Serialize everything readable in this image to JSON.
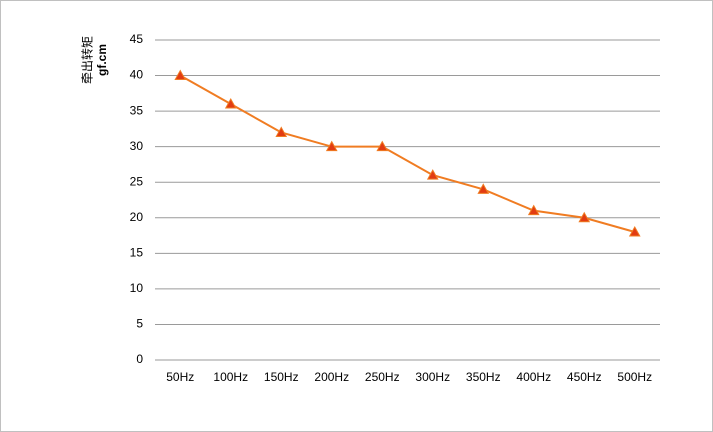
{
  "chart_data": {
    "type": "line",
    "y_label": "牵出转矩",
    "y_unit": "gf.cm",
    "categories": [
      "50Hz",
      "100Hz",
      "150Hz",
      "200Hz",
      "250Hz",
      "300Hz",
      "350Hz",
      "400Hz",
      "450Hz",
      "500Hz"
    ],
    "series": [
      {
        "color": "#f07c22",
        "marker_color": "#e23c12",
        "values": [
          40,
          36,
          32,
          30,
          30,
          26,
          24,
          21,
          20,
          18
        ]
      }
    ],
    "ylim": [
      0,
      45
    ],
    "yticks": [
      0,
      5,
      10,
      15,
      20,
      25,
      30,
      35,
      40,
      45
    ],
    "grid": true
  }
}
